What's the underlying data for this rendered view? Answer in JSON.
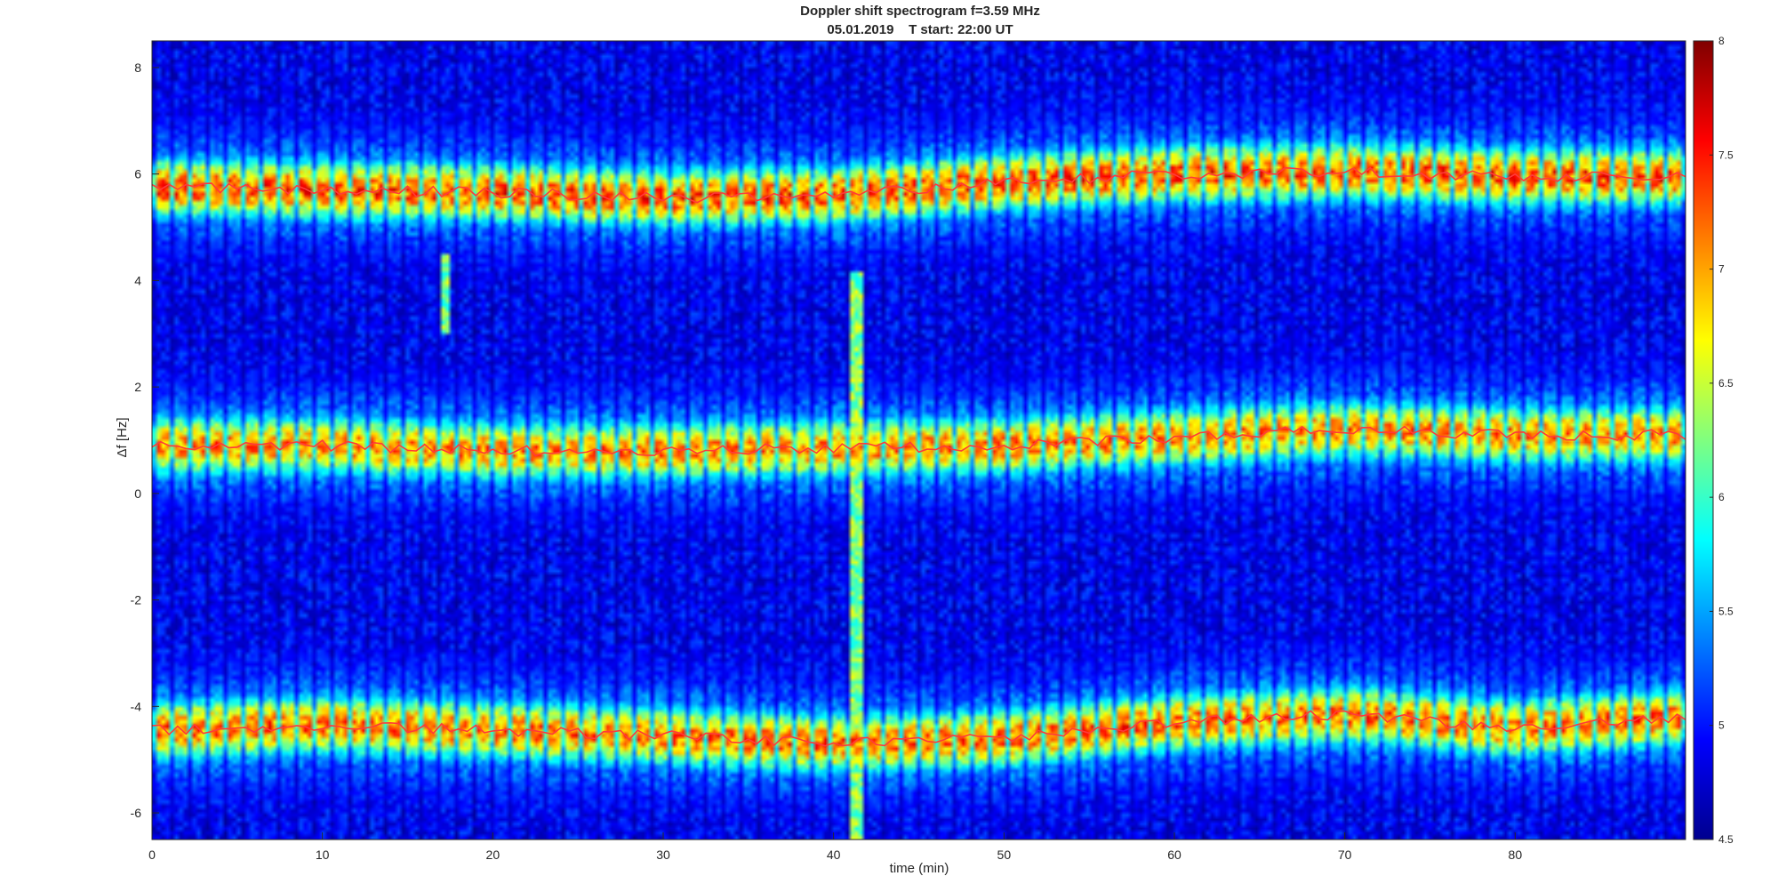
{
  "chart_data": {
    "type": "heatmap",
    "title": "Doppler shift spectrogram f=3.59 MHz",
    "subtitle": "05.01.2019    T start: 22:00 UT",
    "xlabel": "time (min)",
    "ylabel": "Δf [Hz]",
    "xlim": [
      0,
      90
    ],
    "ylim": [
      -6.5,
      8.5
    ],
    "x_ticks": [
      0,
      10,
      20,
      30,
      40,
      50,
      60,
      70,
      80
    ],
    "y_ticks": [
      -6,
      -4,
      -2,
      0,
      2,
      4,
      6,
      8
    ],
    "x_tick_labels": [
      "0",
      "10",
      "20",
      "30",
      "40",
      "50",
      "60",
      "70",
      "80"
    ],
    "y_tick_labels": [
      "-6",
      "-4",
      "-2",
      "0",
      "2",
      "4",
      "6",
      "8"
    ],
    "colorbar": {
      "range": [
        4.5,
        8
      ],
      "ticks": [
        4.5,
        5,
        5.5,
        6,
        6.5,
        7,
        7.5,
        8
      ],
      "tick_labels": [
        "4.5",
        "5",
        "5.5",
        "6",
        "6.5",
        "7",
        "7.5",
        "8"
      ],
      "colormap": "jet"
    },
    "grid": false,
    "bands": [
      {
        "center": [
          [
            0,
            5.75
          ],
          [
            10,
            5.7
          ],
          [
            20,
            5.65
          ],
          [
            30,
            5.55
          ],
          [
            40,
            5.6
          ],
          [
            50,
            5.85
          ],
          [
            60,
            6.0
          ],
          [
            70,
            6.05
          ],
          [
            80,
            5.95
          ],
          [
            90,
            5.95
          ]
        ],
        "peak_intensity": 7.5
      },
      {
        "center": [
          [
            0,
            0.9
          ],
          [
            10,
            0.9
          ],
          [
            20,
            0.8
          ],
          [
            30,
            0.8
          ],
          [
            40,
            0.85
          ],
          [
            50,
            0.9
          ],
          [
            60,
            1.05
          ],
          [
            70,
            1.2
          ],
          [
            80,
            1.1
          ],
          [
            90,
            1.1
          ]
        ],
        "peak_intensity": 7.3
      },
      {
        "center": [
          [
            0,
            -4.45
          ],
          [
            10,
            -4.35
          ],
          [
            20,
            -4.45
          ],
          [
            30,
            -4.55
          ],
          [
            40,
            -4.7
          ],
          [
            50,
            -4.6
          ],
          [
            60,
            -4.3
          ],
          [
            70,
            -4.15
          ],
          [
            80,
            -4.4
          ],
          [
            90,
            -4.2
          ]
        ],
        "peak_intensity": 7.4
      }
    ],
    "vertical_features": [
      {
        "x": 41.3,
        "y_from": -6.5,
        "y_to": 4.2
      },
      {
        "x": 17.2,
        "y_from": 3.0,
        "y_to": 4.5
      }
    ]
  }
}
